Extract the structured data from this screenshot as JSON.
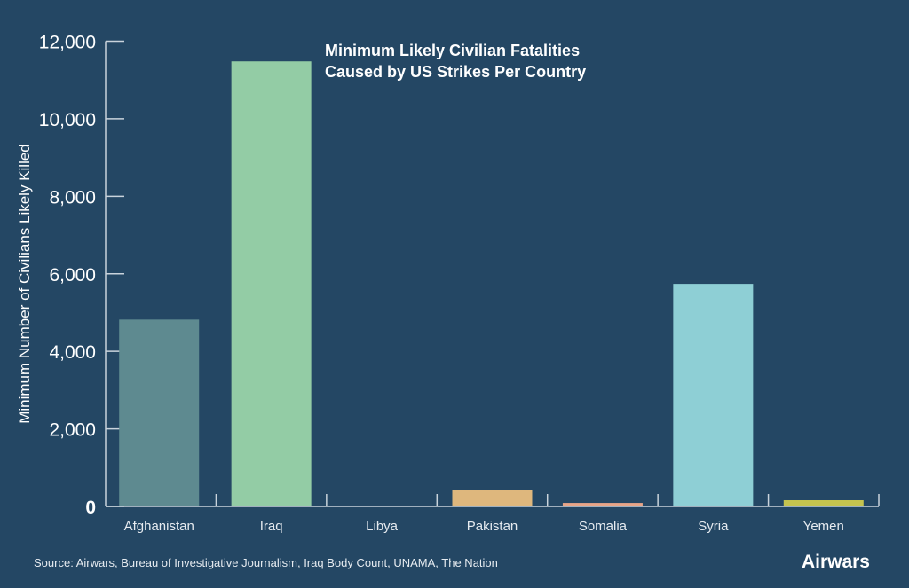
{
  "chart_data": {
    "type": "bar",
    "title_line1": "Minimum Likely Civilian Fatalities",
    "title_line2": "Caused by US Strikes Per Country",
    "xlabel": "",
    "ylabel": "Minimum Number of Civilians Likely Killed",
    "ylim": [
      0,
      12000
    ],
    "yticks": [
      0,
      2000,
      4000,
      6000,
      8000,
      10000,
      12000
    ],
    "ytick_labels": [
      "0",
      "2,000",
      "4,000",
      "6,000",
      "8,000",
      "10,000",
      "12,000"
    ],
    "categories": [
      "Afghanistan",
      "Iraq",
      "Libya",
      "Pakistan",
      "Somalia",
      "Syria",
      "Yemen"
    ],
    "values": [
      4820,
      11480,
      0,
      430,
      90,
      5740,
      160
    ],
    "colors": [
      "#5e8a90",
      "#93cca5",
      "#8fb2c9",
      "#deb77d",
      "#e8a588",
      "#8ecfd5",
      "#c5c44f"
    ],
    "grid": false,
    "legend": "none"
  },
  "source": "Source: Airwars, Bureau of Investigative Journalism, Iraq Body Count, UNAMA, The Nation",
  "logo": "Airwars"
}
